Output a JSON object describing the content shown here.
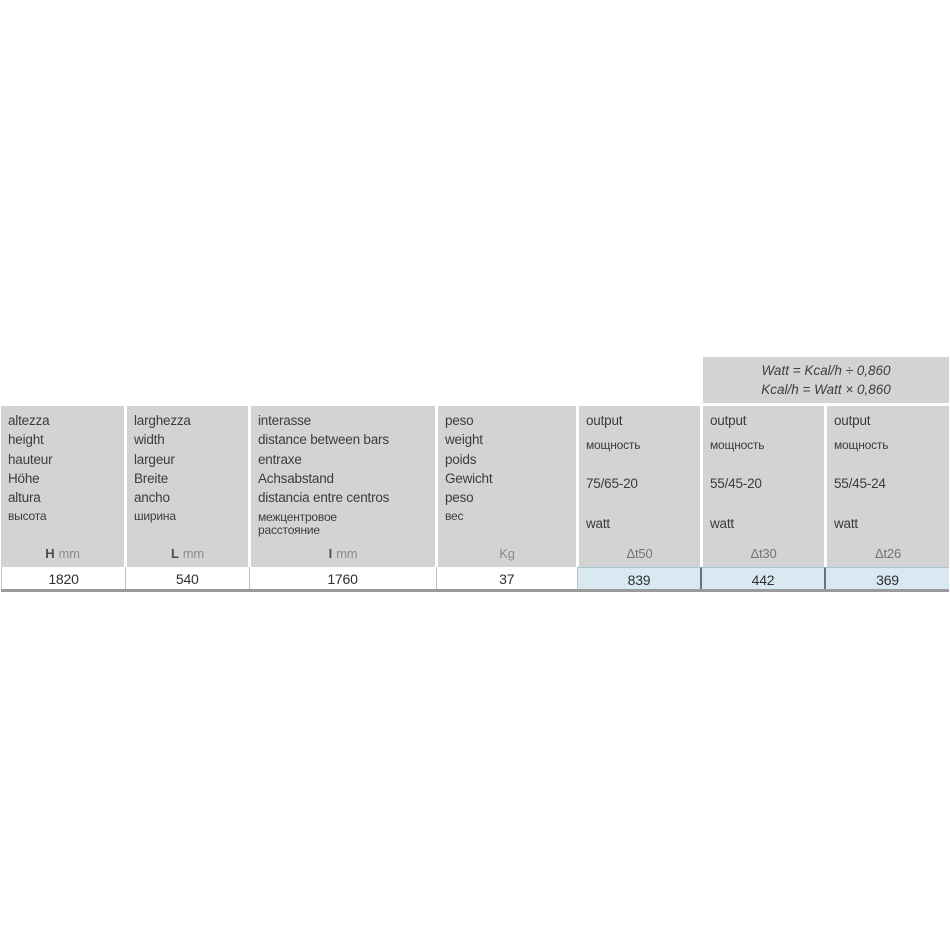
{
  "formula_box": {
    "line1": "Watt = Kcal/h ÷ 0,860",
    "line2": "Kcal/h = Watt × 0,860"
  },
  "colors": {
    "header_bg": "#d3d3d3",
    "highlight_bg": "#d8e9f2",
    "highlight_divider": "#62747f",
    "table_bottom_border": "#9a9a9a"
  },
  "table": {
    "columns": [
      {
        "id": "height",
        "labels": [
          "altezza",
          "height",
          "hauteur",
          "Höhe",
          "altura"
        ],
        "label_ru": "высота",
        "unit_symbol": "H",
        "unit": "mm",
        "value": "1820"
      },
      {
        "id": "width",
        "labels": [
          "larghezza",
          "width",
          "largeur",
          "Breite",
          "ancho"
        ],
        "label_ru": "ширина",
        "unit_symbol": "L",
        "unit": "mm",
        "value": "540"
      },
      {
        "id": "distance-between-bars",
        "labels": [
          "interasse",
          "distance between bars",
          "entraxe",
          "Achsabstand",
          "distancia entre centros"
        ],
        "label_ru": "межцентровое расстояние",
        "unit_symbol": "I",
        "unit": "mm",
        "value": "1760"
      },
      {
        "id": "weight",
        "labels": [
          "peso",
          "weight",
          "poids",
          "Gewicht",
          "peso"
        ],
        "label_ru": "вес",
        "unit_symbol": "",
        "unit": "Kg",
        "value": "37"
      }
    ],
    "output_columns": [
      {
        "id": "output-dt50",
        "label": "output",
        "label_ru": "мощность",
        "regime": "75/65-20",
        "unit_word": "watt",
        "delta": "Δt50",
        "value": "839"
      },
      {
        "id": "output-dt30",
        "label": "output",
        "label_ru": "мощность",
        "regime": "55/45-20",
        "unit_word": "watt",
        "delta": "Δt30",
        "value": "442"
      },
      {
        "id": "output-dt26",
        "label": "output",
        "label_ru": "мощность",
        "regime": "55/45-24",
        "unit_word": "watt",
        "delta": "Δt26",
        "value": "369"
      }
    ]
  }
}
